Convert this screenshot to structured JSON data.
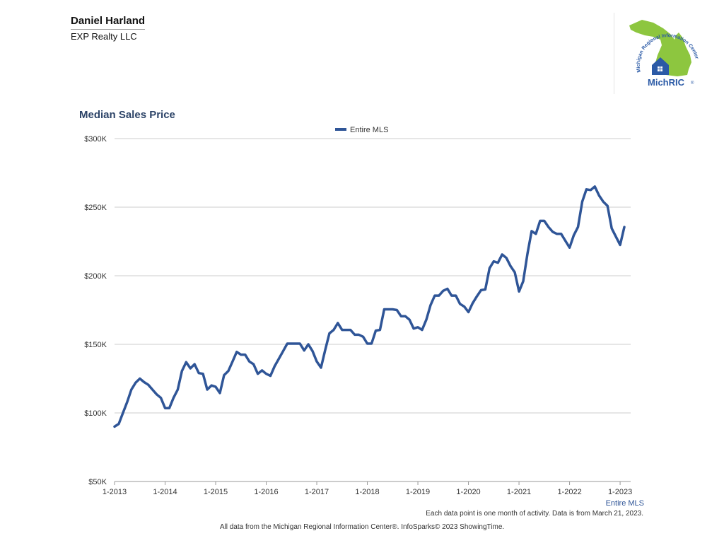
{
  "header": {
    "agent_name": "Daniel Harland",
    "company": "EXP Realty LLC"
  },
  "logo": {
    "arc_text": "Michigan Regional Information Center",
    "wordmark": "MichRIC",
    "registered_mark": "®",
    "colors": {
      "green": "#8dc63f",
      "blue": "#2b5aa6"
    }
  },
  "footer": {
    "note": "Each data point is one month of activity. Data is from March 21, 2023.",
    "credit": "All data from the Michigan Regional Information Center®. InfoSparks© 2023 ShowingTime."
  },
  "chart_data": {
    "type": "line",
    "title": "Median Sales Price",
    "legend_position": "top-center",
    "grid": true,
    "line_color": "#2f5597",
    "ylim": [
      50000,
      300000
    ],
    "y_ticks": [
      {
        "value": 50000,
        "label": "$50K"
      },
      {
        "value": 100000,
        "label": "$100K"
      },
      {
        "value": 150000,
        "label": "$150K"
      },
      {
        "value": 200000,
        "label": "$200K"
      },
      {
        "value": 250000,
        "label": "$250K"
      },
      {
        "value": 300000,
        "label": "$300K"
      }
    ],
    "x_tick_labels": [
      "1-2013",
      "1-2014",
      "1-2015",
      "1-2016",
      "1-2017",
      "1-2018",
      "1-2019",
      "1-2020",
      "1-2021",
      "1-2022",
      "1-2023"
    ],
    "x_axis_corner_label": "Entire MLS",
    "series": [
      {
        "name": "Entire MLS",
        "start": "2013-01",
        "values": [
          90000,
          92000,
          100000,
          108000,
          117000,
          122000,
          125000,
          122500,
          120500,
          117000,
          113500,
          111000,
          103500,
          103500,
          111000,
          117000,
          130500,
          137000,
          132500,
          135500,
          129000,
          128500,
          117000,
          120000,
          119000,
          114500,
          127500,
          130500,
          137500,
          144500,
          142500,
          142500,
          137500,
          135500,
          128500,
          131000,
          128500,
          127000,
          134000,
          139500,
          145000,
          150500,
          150500,
          150500,
          150500,
          145500,
          150000,
          145000,
          137500,
          133000,
          146000,
          158000,
          160500,
          165500,
          160500,
          160500,
          160500,
          157000,
          157000,
          155500,
          150500,
          150500,
          160000,
          160500,
          175500,
          175500,
          175500,
          175000,
          170500,
          170500,
          168000,
          161500,
          162500,
          160500,
          168000,
          178500,
          185500,
          185500,
          189000,
          190500,
          185500,
          185500,
          179500,
          177500,
          173500,
          180000,
          185000,
          189500,
          190000,
          205500,
          210500,
          209500,
          215500,
          213000,
          207000,
          202500,
          188500,
          196000,
          216000,
          232500,
          230500,
          240000,
          240000,
          235500,
          232000,
          230500,
          230500,
          225500,
          220500,
          229500,
          235500,
          254000,
          263000,
          262500,
          265000,
          258500,
          254000,
          251000,
          234500,
          228500,
          222500,
          235500
        ]
      }
    ]
  }
}
